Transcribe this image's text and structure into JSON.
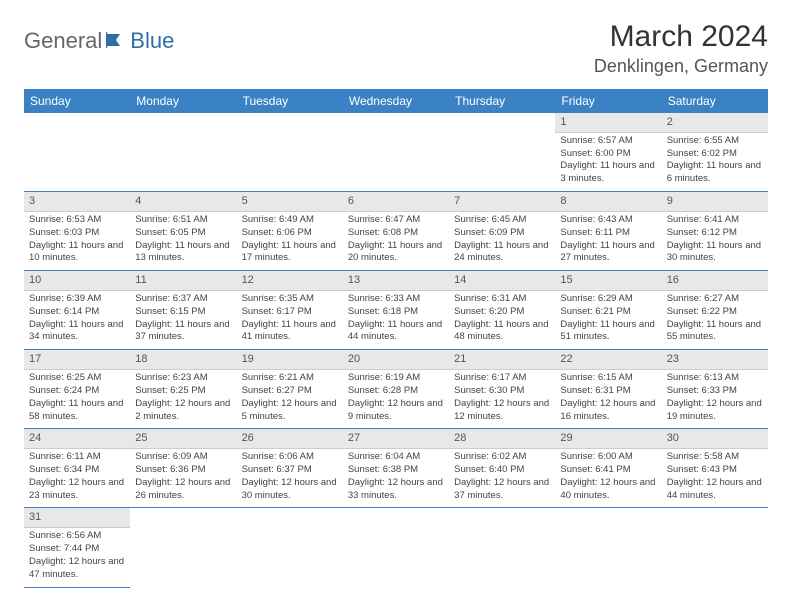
{
  "logo": {
    "part1": "General",
    "part2": "Blue"
  },
  "title": "March 2024",
  "location": "Denklingen, Germany",
  "colors": {
    "header_bg": "#3b82c4",
    "header_text": "#ffffff",
    "daynum_bg": "#e8e8e8",
    "row_divider": "#3b82c4",
    "logo_blue": "#2f6fa8"
  },
  "weekdays": [
    "Sunday",
    "Monday",
    "Tuesday",
    "Wednesday",
    "Thursday",
    "Friday",
    "Saturday"
  ],
  "weeks": [
    [
      null,
      null,
      null,
      null,
      null,
      {
        "n": "1",
        "sr": "Sunrise: 6:57 AM",
        "ss": "Sunset: 6:00 PM",
        "dl": "Daylight: 11 hours and 3 minutes."
      },
      {
        "n": "2",
        "sr": "Sunrise: 6:55 AM",
        "ss": "Sunset: 6:02 PM",
        "dl": "Daylight: 11 hours and 6 minutes."
      }
    ],
    [
      {
        "n": "3",
        "sr": "Sunrise: 6:53 AM",
        "ss": "Sunset: 6:03 PM",
        "dl": "Daylight: 11 hours and 10 minutes."
      },
      {
        "n": "4",
        "sr": "Sunrise: 6:51 AM",
        "ss": "Sunset: 6:05 PM",
        "dl": "Daylight: 11 hours and 13 minutes."
      },
      {
        "n": "5",
        "sr": "Sunrise: 6:49 AM",
        "ss": "Sunset: 6:06 PM",
        "dl": "Daylight: 11 hours and 17 minutes."
      },
      {
        "n": "6",
        "sr": "Sunrise: 6:47 AM",
        "ss": "Sunset: 6:08 PM",
        "dl": "Daylight: 11 hours and 20 minutes."
      },
      {
        "n": "7",
        "sr": "Sunrise: 6:45 AM",
        "ss": "Sunset: 6:09 PM",
        "dl": "Daylight: 11 hours and 24 minutes."
      },
      {
        "n": "8",
        "sr": "Sunrise: 6:43 AM",
        "ss": "Sunset: 6:11 PM",
        "dl": "Daylight: 11 hours and 27 minutes."
      },
      {
        "n": "9",
        "sr": "Sunrise: 6:41 AM",
        "ss": "Sunset: 6:12 PM",
        "dl": "Daylight: 11 hours and 30 minutes."
      }
    ],
    [
      {
        "n": "10",
        "sr": "Sunrise: 6:39 AM",
        "ss": "Sunset: 6:14 PM",
        "dl": "Daylight: 11 hours and 34 minutes."
      },
      {
        "n": "11",
        "sr": "Sunrise: 6:37 AM",
        "ss": "Sunset: 6:15 PM",
        "dl": "Daylight: 11 hours and 37 minutes."
      },
      {
        "n": "12",
        "sr": "Sunrise: 6:35 AM",
        "ss": "Sunset: 6:17 PM",
        "dl": "Daylight: 11 hours and 41 minutes."
      },
      {
        "n": "13",
        "sr": "Sunrise: 6:33 AM",
        "ss": "Sunset: 6:18 PM",
        "dl": "Daylight: 11 hours and 44 minutes."
      },
      {
        "n": "14",
        "sr": "Sunrise: 6:31 AM",
        "ss": "Sunset: 6:20 PM",
        "dl": "Daylight: 11 hours and 48 minutes."
      },
      {
        "n": "15",
        "sr": "Sunrise: 6:29 AM",
        "ss": "Sunset: 6:21 PM",
        "dl": "Daylight: 11 hours and 51 minutes."
      },
      {
        "n": "16",
        "sr": "Sunrise: 6:27 AM",
        "ss": "Sunset: 6:22 PM",
        "dl": "Daylight: 11 hours and 55 minutes."
      }
    ],
    [
      {
        "n": "17",
        "sr": "Sunrise: 6:25 AM",
        "ss": "Sunset: 6:24 PM",
        "dl": "Daylight: 11 hours and 58 minutes."
      },
      {
        "n": "18",
        "sr": "Sunrise: 6:23 AM",
        "ss": "Sunset: 6:25 PM",
        "dl": "Daylight: 12 hours and 2 minutes."
      },
      {
        "n": "19",
        "sr": "Sunrise: 6:21 AM",
        "ss": "Sunset: 6:27 PM",
        "dl": "Daylight: 12 hours and 5 minutes."
      },
      {
        "n": "20",
        "sr": "Sunrise: 6:19 AM",
        "ss": "Sunset: 6:28 PM",
        "dl": "Daylight: 12 hours and 9 minutes."
      },
      {
        "n": "21",
        "sr": "Sunrise: 6:17 AM",
        "ss": "Sunset: 6:30 PM",
        "dl": "Daylight: 12 hours and 12 minutes."
      },
      {
        "n": "22",
        "sr": "Sunrise: 6:15 AM",
        "ss": "Sunset: 6:31 PM",
        "dl": "Daylight: 12 hours and 16 minutes."
      },
      {
        "n": "23",
        "sr": "Sunrise: 6:13 AM",
        "ss": "Sunset: 6:33 PM",
        "dl": "Daylight: 12 hours and 19 minutes."
      }
    ],
    [
      {
        "n": "24",
        "sr": "Sunrise: 6:11 AM",
        "ss": "Sunset: 6:34 PM",
        "dl": "Daylight: 12 hours and 23 minutes."
      },
      {
        "n": "25",
        "sr": "Sunrise: 6:09 AM",
        "ss": "Sunset: 6:36 PM",
        "dl": "Daylight: 12 hours and 26 minutes."
      },
      {
        "n": "26",
        "sr": "Sunrise: 6:06 AM",
        "ss": "Sunset: 6:37 PM",
        "dl": "Daylight: 12 hours and 30 minutes."
      },
      {
        "n": "27",
        "sr": "Sunrise: 6:04 AM",
        "ss": "Sunset: 6:38 PM",
        "dl": "Daylight: 12 hours and 33 minutes."
      },
      {
        "n": "28",
        "sr": "Sunrise: 6:02 AM",
        "ss": "Sunset: 6:40 PM",
        "dl": "Daylight: 12 hours and 37 minutes."
      },
      {
        "n": "29",
        "sr": "Sunrise: 6:00 AM",
        "ss": "Sunset: 6:41 PM",
        "dl": "Daylight: 12 hours and 40 minutes."
      },
      {
        "n": "30",
        "sr": "Sunrise: 5:58 AM",
        "ss": "Sunset: 6:43 PM",
        "dl": "Daylight: 12 hours and 44 minutes."
      }
    ],
    [
      {
        "n": "31",
        "sr": "Sunrise: 6:56 AM",
        "ss": "Sunset: 7:44 PM",
        "dl": "Daylight: 12 hours and 47 minutes."
      },
      null,
      null,
      null,
      null,
      null,
      null
    ]
  ]
}
